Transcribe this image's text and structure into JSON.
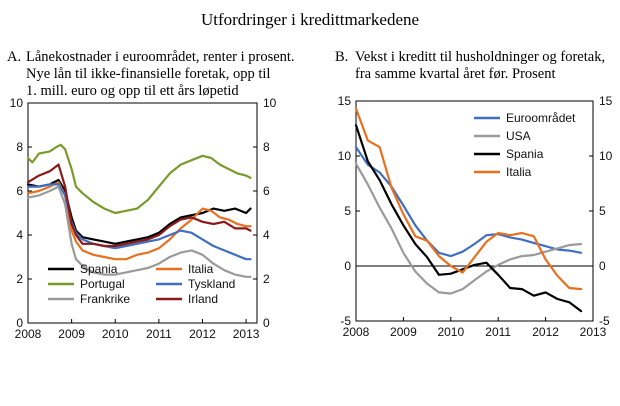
{
  "figure_title": "Utfordringer i kredittmarkedene",
  "chart_data": [
    {
      "type": "line",
      "panel_label": "A.",
      "title_lines": [
        "Lånekostnader i euroområdet, renter i prosent.",
        "Nye lån til ikke-finansielle foretak, opp til",
        "1. mill. euro og opp til ett års løpetid"
      ],
      "x_ticks": [
        "2008",
        "2009",
        "2010",
        "2011",
        "2012",
        "2013"
      ],
      "xlim": [
        2008.0,
        2013.25
      ],
      "y_ticks_left": [
        "0",
        "2",
        "4",
        "6",
        "8",
        "10"
      ],
      "y_ticks_right": [
        "0",
        "2",
        "4",
        "6",
        "8",
        "10"
      ],
      "ylim": [
        0,
        10
      ],
      "grid": false,
      "legend_columns": 2,
      "series": [
        {
          "name": "Spania",
          "color": "#000000",
          "x": [
            2008.0,
            2008.25,
            2008.5,
            2008.7,
            2008.85,
            2009.0,
            2009.1,
            2009.25,
            2009.5,
            2009.75,
            2010.0,
            2010.25,
            2010.5,
            2010.75,
            2011.0,
            2011.25,
            2011.5,
            2011.75,
            2012.0,
            2012.25,
            2012.5,
            2012.75,
            2013.0,
            2013.1
          ],
          "y": [
            6.3,
            6.2,
            6.3,
            6.5,
            6.0,
            4.8,
            4.2,
            3.9,
            3.8,
            3.7,
            3.6,
            3.7,
            3.8,
            3.9,
            4.1,
            4.5,
            4.8,
            4.9,
            5.0,
            5.2,
            5.1,
            5.2,
            5.0,
            5.2
          ]
        },
        {
          "name": "Italia",
          "color": "#e8701f",
          "x": [
            2008.0,
            2008.25,
            2008.5,
            2008.7,
            2008.85,
            2009.0,
            2009.1,
            2009.25,
            2009.5,
            2009.75,
            2010.0,
            2010.25,
            2010.5,
            2010.75,
            2011.0,
            2011.25,
            2011.5,
            2011.75,
            2012.0,
            2012.2,
            2012.4,
            2012.6,
            2012.8,
            2013.0,
            2013.1
          ],
          "y": [
            5.9,
            6.0,
            6.2,
            6.4,
            5.8,
            4.2,
            3.7,
            3.3,
            3.1,
            3.0,
            2.9,
            2.9,
            3.1,
            3.2,
            3.4,
            3.8,
            4.3,
            4.7,
            5.2,
            5.1,
            4.8,
            4.7,
            4.5,
            4.4,
            4.4
          ]
        },
        {
          "name": "Portugal",
          "color": "#7a9a2a",
          "x": [
            2008.0,
            2008.1,
            2008.25,
            2008.5,
            2008.65,
            2008.75,
            2008.85,
            2009.0,
            2009.1,
            2009.25,
            2009.5,
            2009.75,
            2010.0,
            2010.25,
            2010.5,
            2010.75,
            2011.0,
            2011.25,
            2011.5,
            2011.75,
            2012.0,
            2012.2,
            2012.4,
            2012.6,
            2012.8,
            2013.0,
            2013.1
          ],
          "y": [
            7.5,
            7.3,
            7.7,
            7.8,
            8.0,
            8.1,
            7.9,
            7.0,
            6.2,
            5.9,
            5.5,
            5.2,
            5.0,
            5.1,
            5.2,
            5.6,
            6.2,
            6.8,
            7.2,
            7.4,
            7.6,
            7.5,
            7.2,
            7.0,
            6.8,
            6.7,
            6.6
          ]
        },
        {
          "name": "Tyskland",
          "color": "#3f6fc2",
          "x": [
            2008.0,
            2008.25,
            2008.5,
            2008.7,
            2008.85,
            2009.0,
            2009.1,
            2009.25,
            2009.5,
            2009.75,
            2010.0,
            2010.25,
            2010.5,
            2010.75,
            2011.0,
            2011.25,
            2011.5,
            2011.75,
            2012.0,
            2012.25,
            2012.5,
            2012.75,
            2013.0,
            2013.1
          ],
          "y": [
            6.2,
            6.2,
            6.3,
            6.3,
            5.8,
            4.6,
            4.1,
            3.8,
            3.6,
            3.5,
            3.4,
            3.5,
            3.6,
            3.7,
            3.8,
            4.0,
            4.2,
            4.1,
            3.8,
            3.5,
            3.3,
            3.1,
            2.9,
            2.9
          ]
        },
        {
          "name": "Frankrike",
          "color": "#9a9a9a",
          "x": [
            2008.0,
            2008.25,
            2008.5,
            2008.7,
            2008.85,
            2009.0,
            2009.1,
            2009.25,
            2009.5,
            2009.75,
            2010.0,
            2010.25,
            2010.5,
            2010.75,
            2011.0,
            2011.25,
            2011.5,
            2011.75,
            2012.0,
            2012.25,
            2012.5,
            2012.75,
            2013.0,
            2013.1
          ],
          "y": [
            5.7,
            5.8,
            6.0,
            6.2,
            5.4,
            3.6,
            2.9,
            2.6,
            2.3,
            2.2,
            2.2,
            2.3,
            2.4,
            2.5,
            2.7,
            3.0,
            3.2,
            3.3,
            3.1,
            2.7,
            2.4,
            2.2,
            2.1,
            2.1
          ]
        },
        {
          "name": "Irland",
          "color": "#8b1a1a",
          "x": [
            2008.0,
            2008.25,
            2008.5,
            2008.7,
            2008.85,
            2009.0,
            2009.1,
            2009.25,
            2009.5,
            2009.75,
            2010.0,
            2010.25,
            2010.5,
            2010.75,
            2011.0,
            2011.25,
            2011.5,
            2011.75,
            2012.0,
            2012.25,
            2012.5,
            2012.75,
            2013.0,
            2013.1
          ],
          "y": [
            6.4,
            6.7,
            6.9,
            7.2,
            6.2,
            4.5,
            4.0,
            3.6,
            3.6,
            3.5,
            3.5,
            3.6,
            3.7,
            3.8,
            4.0,
            4.4,
            4.7,
            4.8,
            4.6,
            4.5,
            4.6,
            4.3,
            4.3,
            4.2
          ]
        }
      ]
    },
    {
      "type": "line",
      "panel_label": "B.",
      "title_lines": [
        "Vekst i kreditt til husholdninger og foretak,",
        "fra samme kvartal året før. Prosent"
      ],
      "x_ticks": [
        "2008",
        "2009",
        "2010",
        "2011",
        "2012",
        "2013"
      ],
      "xlim": [
        2008.0,
        2013.0
      ],
      "y_ticks_left": [
        "-5",
        "0",
        "5",
        "10",
        "15"
      ],
      "y_ticks_right": [
        "-5",
        "0",
        "5",
        "10",
        "15"
      ],
      "ylim": [
        -5,
        15
      ],
      "zero_line": true,
      "grid": false,
      "legend_columns": 1,
      "series": [
        {
          "name": "Euroområdet",
          "color": "#3f6fc2",
          "x": [
            2008.0,
            2008.25,
            2008.5,
            2008.75,
            2009.0,
            2009.25,
            2009.5,
            2009.75,
            2010.0,
            2010.25,
            2010.5,
            2010.75,
            2011.0,
            2011.25,
            2011.5,
            2011.75,
            2012.0,
            2012.25,
            2012.5,
            2012.75
          ],
          "y": [
            10.8,
            9.2,
            8.5,
            7.2,
            5.5,
            3.7,
            2.3,
            1.2,
            0.9,
            1.3,
            2.0,
            2.8,
            2.9,
            2.6,
            2.4,
            2.1,
            1.8,
            1.5,
            1.4,
            1.2
          ]
        },
        {
          "name": "USA",
          "color": "#9a9a9a",
          "x": [
            2008.0,
            2008.25,
            2008.5,
            2008.75,
            2009.0,
            2009.25,
            2009.5,
            2009.75,
            2010.0,
            2010.25,
            2010.5,
            2010.75,
            2011.0,
            2011.25,
            2011.5,
            2011.75,
            2012.0,
            2012.25,
            2012.5,
            2012.75
          ],
          "y": [
            9.3,
            7.4,
            5.3,
            3.4,
            1.2,
            -0.5,
            -1.6,
            -2.4,
            -2.5,
            -2.1,
            -1.3,
            -0.5,
            0.1,
            0.6,
            0.9,
            1.0,
            1.3,
            1.6,
            1.9,
            2.0
          ]
        },
        {
          "name": "Spania",
          "color": "#000000",
          "x": [
            2008.0,
            2008.25,
            2008.5,
            2008.75,
            2009.0,
            2009.25,
            2009.5,
            2009.75,
            2010.0,
            2010.25,
            2010.5,
            2010.75,
            2011.0,
            2011.25,
            2011.5,
            2011.75,
            2012.0,
            2012.25,
            2012.5,
            2012.75
          ],
          "y": [
            12.8,
            9.5,
            7.8,
            5.6,
            3.7,
            2.0,
            0.8,
            -0.8,
            -0.7,
            -0.3,
            0.1,
            0.3,
            -0.8,
            -2.0,
            -2.1,
            -2.7,
            -2.4,
            -3.0,
            -3.3,
            -4.1
          ]
        },
        {
          "name": "Italia",
          "color": "#e8701f",
          "x": [
            2008.0,
            2008.25,
            2008.5,
            2008.75,
            2009.0,
            2009.25,
            2009.5,
            2009.75,
            2010.0,
            2010.25,
            2010.5,
            2010.75,
            2011.0,
            2011.25,
            2011.5,
            2011.75,
            2012.0,
            2012.25,
            2012.5,
            2012.75
          ],
          "y": [
            14.3,
            11.4,
            10.8,
            7.1,
            4.7,
            2.7,
            2.3,
            0.9,
            0.0,
            -0.6,
            0.8,
            2.2,
            3.0,
            2.8,
            3.0,
            2.7,
            0.6,
            -0.9,
            -2.0,
            -2.1
          ]
        }
      ]
    }
  ]
}
